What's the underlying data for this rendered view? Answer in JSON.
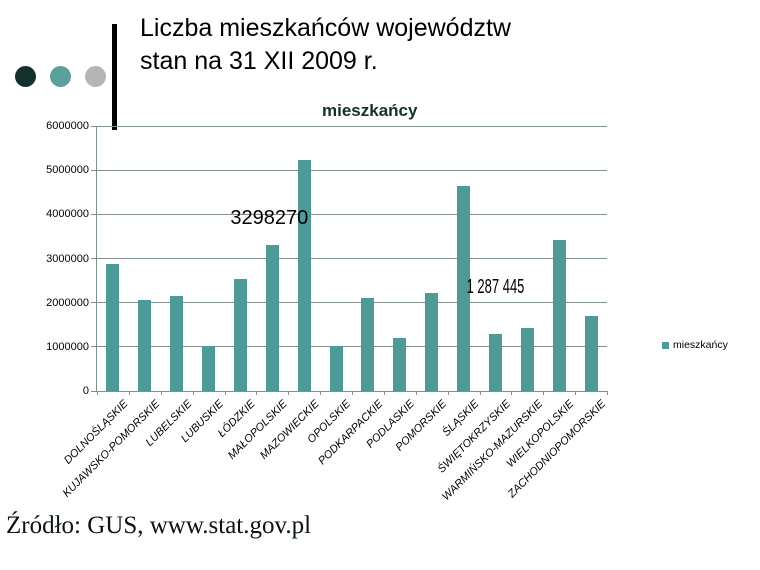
{
  "slide": {
    "title_line1": "Liczba mieszkańców województw",
    "title_line2": "stan na 31 XII 2009 r.",
    "source": "Źródło: GUS, www.stat.gov.pl",
    "decor_dot_colors": [
      "#14302c",
      "#5aa09d",
      "#b5b5b5"
    ]
  },
  "chart_data": {
    "type": "bar",
    "title": "mieszkańcy",
    "categories": [
      "DOLNOŚLĄSKIE",
      "KUJAWSKO-POMORSKIE",
      "LUBELSKIE",
      "LUBUSKIE",
      "ŁÓDZKIE",
      "MAŁOPOLSKIE",
      "MAZOWIECKIE",
      "OPOLSKIE",
      "PODKARPACKIE",
      "PODLASKIE",
      "POMORSKIE",
      "ŚLĄSKIE",
      "ŚWIĘTOKRZYSKIE",
      "WARMIŃSKO-MAZURSKIE",
      "WIELKOPOLSKIE",
      "ZACHODNIOPOMORSKIE"
    ],
    "values": [
      2880000,
      2070000,
      2150000,
      1010000,
      2540000,
      3298270,
      5220000,
      1030000,
      2100000,
      1190000,
      2230000,
      4640000,
      1287445,
      1430000,
      3410000,
      1690000
    ],
    "data_labels": [
      {
        "index": 5,
        "text": "3298270"
      },
      {
        "index": 12,
        "text": "1 287 445"
      }
    ],
    "ylim": [
      0,
      6000000
    ],
    "ytick_step": 1000000,
    "ytick_labels": [
      "0",
      "1000000",
      "2000000",
      "3000000",
      "4000000",
      "5000000",
      "6000000"
    ],
    "grid": true,
    "legend": {
      "label": "mieszkańcy",
      "position": "right"
    },
    "bar_color": "#4e9a98",
    "gridline_color": "#7f908e",
    "xlabel": "",
    "ylabel": ""
  }
}
